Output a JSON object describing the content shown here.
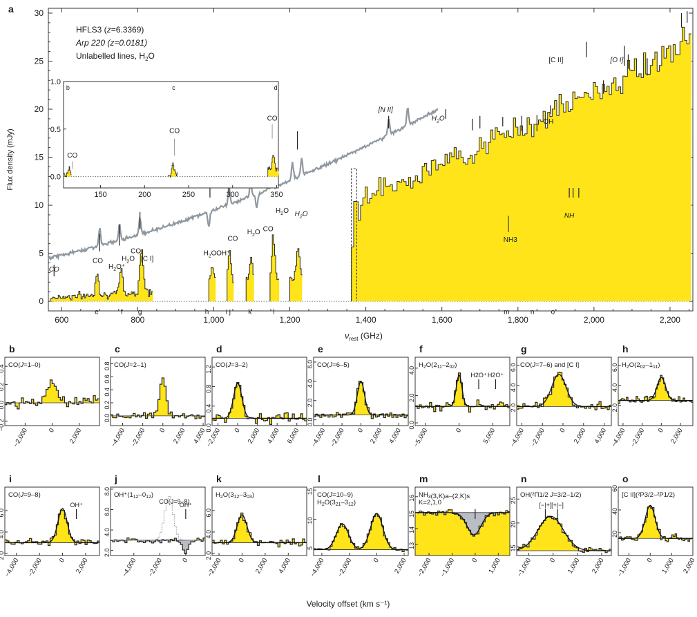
{
  "colors": {
    "fill": "#ffe419",
    "stroke": "#2b2b2b",
    "arp": "#8f979f",
    "absorb": "#b9bec4"
  },
  "panel_letters": {
    "a": "a",
    "b": "b",
    "c": "c",
    "d": "d",
    "e": "e",
    "f": "f",
    "g": "g",
    "h": "h",
    "i": "i",
    "j": "j",
    "k": "k",
    "l": "l",
    "m": "m",
    "n": "n",
    "o": "o"
  },
  "shared_xlabel": "Velocity offset (km s⁻¹)",
  "chart_data": [
    {
      "id": "a",
      "type": "area",
      "xlabel": "νrest (GHz)",
      "ylabel": "Flux density (mJy)",
      "xlim": [
        565,
        2260
      ],
      "ylim": [
        -1,
        30.5
      ],
      "xticks": [
        600,
        800,
        1000,
        1200,
        1400,
        1600,
        1800,
        2000,
        2200
      ],
      "xtick_labels": [
        "600",
        "800",
        "1,000",
        "1,200",
        "1,400",
        "1,600",
        "1,800",
        "2,000",
        "2,200"
      ],
      "yticks": [
        0,
        5,
        10,
        15,
        20,
        25,
        30
      ],
      "legend": [
        {
          "text": "HFLS3 (z=6.3369)",
          "color": "#2b2b2b",
          "italic": false
        },
        {
          "text": "Arp 220 (z=0.0181)",
          "color": "#8f979f",
          "italic": true
        },
        {
          "text": "Unlabelled lines, H2O",
          "color": "#1a1a1a",
          "italic": false
        }
      ],
      "series": [
        {
          "name": "HFLS3 (z=6.3369)",
          "segments": [
            [
              570,
              840
            ],
            [
              987,
              1005
            ],
            [
              1035,
              1052
            ],
            [
              1085,
              1106
            ],
            [
              1148,
              1172
            ],
            [
              1200,
              1232
            ],
            [
              1362,
              2255
            ]
          ]
        },
        {
          "name": "Arp 220 (z=0.0181)",
          "x_range": [
            565,
            1590
          ],
          "y_range": [
            4.5,
            20.2
          ]
        }
      ],
      "line_labels": [
        {
          "text": "CO",
          "x": 580,
          "y": 3.1,
          "italic": true
        },
        {
          "text": "CO",
          "x": 695,
          "y": 4.0
        },
        {
          "text": "H2O⁺",
          "x": 745,
          "y": 3.4
        },
        {
          "text": "H2O",
          "x": 775,
          "y": 4.2
        },
        {
          "text": "CO",
          "x": 795,
          "y": 5.0
        },
        {
          "text": "[C I]",
          "x": 825,
          "y": 4.2
        },
        {
          "text": "H2O",
          "x": 990,
          "y": 4.8
        },
        {
          "text": "OH⁺",
          "x": 1025,
          "y": 4.8
        },
        {
          "text": "CO",
          "x": 1050,
          "y": 6.3
        },
        {
          "text": "H2O",
          "x": 1105,
          "y": 7.0
        },
        {
          "text": "CO",
          "x": 1143,
          "y": 7.3
        },
        {
          "text": "H2O",
          "x": 1180,
          "y": 9.2
        },
        {
          "text": "H2O",
          "x": 1230,
          "y": 8.9,
          "italic": true
        },
        {
          "text": "[N II]",
          "x": 1452,
          "y": 19.7,
          "italic": true
        },
        {
          "text": "H2O",
          "x": 1590,
          "y": 18.8,
          "italic": true
        },
        {
          "text": "NH3",
          "x": 1780,
          "y": 6.2
        },
        {
          "text": "NH",
          "x": 1935,
          "y": 8.7,
          "italic": true
        },
        {
          "text": "OH",
          "x": 1880,
          "y": 18.5
        },
        {
          "text": "[C II]",
          "x": 1900,
          "y": 24.9
        },
        {
          "text": "[O I]",
          "x": 2060,
          "y": 24.9,
          "italic": true
        }
      ],
      "letters": [
        {
          "text": "e",
          "x": 692
        },
        {
          "text": "f",
          "x": 758
        },
        {
          "text": "g",
          "x": 806
        },
        {
          "text": "h",
          "x": 982
        },
        {
          "text": "i j",
          "x": 1038
        },
        {
          "text": "k",
          "x": 1095
        },
        {
          "text": "l",
          "x": 1158
        },
        {
          "text": "m",
          "x": 1770
        },
        {
          "text": "n",
          "x": 1838
        },
        {
          "text": "o",
          "x": 1892
        }
      ]
    },
    {
      "id": "a-inset",
      "type": "line",
      "xlim": [
        108,
        352
      ],
      "ylim": [
        -0.12,
        1.0
      ],
      "xticks": [
        150,
        200,
        250,
        300,
        350
      ],
      "yticks": [
        0.0,
        0.5,
        1.0
      ],
      "ytick_labels": [
        "0.0",
        "0.5",
        "1.0"
      ],
      "line_labels": [
        {
          "text": "CO",
          "x": 118,
          "y": 0.2
        },
        {
          "text": "CO",
          "x": 234,
          "y": 0.46
        },
        {
          "text": "CO",
          "x": 345,
          "y": 0.59
        }
      ],
      "letters": [
        {
          "text": "b",
          "x": 113
        },
        {
          "text": "c",
          "x": 233
        },
        {
          "text": "d",
          "x": 349
        }
      ],
      "segments": [
        [
          108,
          117
        ],
        [
          227,
          237
        ],
        [
          340,
          352
        ]
      ]
    },
    {
      "id": "b",
      "type": "bar",
      "title": "CO(J=1–0)",
      "xlim": [
        -3500,
        3500
      ],
      "ylim": [
        -0.25,
        0.5
      ],
      "xticks": [
        -2000,
        0,
        2000
      ],
      "xtick_labels": [
        "−2,000",
        "0",
        "2,000"
      ],
      "yticks": [
        -0.2,
        0.0,
        0.2,
        0.4
      ],
      "ytick_labels": [
        "−0.2",
        "0.0",
        "0.2",
        "0.4"
      ],
      "baseline": 0,
      "peak": {
        "center": 0,
        "width": 350,
        "amp": 0.22
      },
      "noise": 0.09
    },
    {
      "id": "c",
      "type": "bar",
      "title": "CO(J=2–1)",
      "xlim": [
        -5200,
        4200
      ],
      "ylim": [
        -0.15,
        0.9
      ],
      "xticks": [
        -4000,
        -2000,
        0,
        2000,
        4000
      ],
      "xtick_labels": [
        "−4,000",
        "−2,000",
        "0",
        "2,000",
        "4,000"
      ],
      "yticks": [
        0.0,
        0.2,
        0.4,
        0.6,
        0.8
      ],
      "ytick_labels": [
        "0.0",
        "0.2",
        "0.4",
        "0.6",
        "0.8"
      ],
      "baseline": 0,
      "peak": {
        "center": 0,
        "width": 320,
        "amp": 0.58
      },
      "noise": 0.08
    },
    {
      "id": "d",
      "type": "bar",
      "title": "CO(J=3–2)",
      "xlim": [
        -2600,
        7000
      ],
      "ylim": [
        0,
        1.4
      ],
      "xticks": [
        -2000,
        0,
        2000,
        4000,
        6000
      ],
      "xtick_labels": [
        "−2,000",
        "0",
        "2,000",
        "4,000",
        "6,000"
      ],
      "yticks": [
        0.0,
        0.4,
        0.8,
        1.2
      ],
      "ytick_labels": [
        "0.0",
        "0.4",
        "0.8",
        "1.2"
      ],
      "baseline": 0.15,
      "peak": {
        "center": 0,
        "width": 420,
        "amp": 0.72
      },
      "noise": 0.14,
      "fit": true
    },
    {
      "id": "e",
      "type": "bar",
      "title": "CO(J=6–5)",
      "xlim": [
        -5000,
        5000
      ],
      "ylim": [
        -0.6,
        6.5
      ],
      "xticks": [
        -4000,
        -2000,
        0,
        2000,
        4000
      ],
      "xtick_labels": [
        "−4,000",
        "−2,000",
        "0",
        "2,000",
        "4,000"
      ],
      "yticks": [
        0.0,
        2.0,
        4.0,
        6.0
      ],
      "ytick_labels": [
        "0.0",
        "2.0",
        "4.0",
        "6.0"
      ],
      "baseline": 0.5,
      "peak": {
        "center": 0,
        "width": 380,
        "amp": 3.5
      },
      "noise": 0.55,
      "fit": true
    },
    {
      "id": "f",
      "type": "bar",
      "title": "H2O(211–202)",
      "xlim": [
        -6500,
        7500
      ],
      "ylim": [
        -0.2,
        4.8
      ],
      "xticks": [
        -5000,
        0,
        5000
      ],
      "xtick_labels": [
        "−5,000",
        "0",
        "5,000"
      ],
      "yticks": [
        0.0,
        2.0,
        4.0
      ],
      "ytick_labels": [
        "0.0",
        "2.0",
        "4.0"
      ],
      "baseline": 1.2,
      "peak": {
        "center": 0,
        "width": 420,
        "amp": 2.3
      },
      "noise": 0.5,
      "fit": true,
      "marks": [
        {
          "text": "H2O⁺",
          "x": 2900
        },
        {
          "text": "H2O⁺",
          "x": 5400
        }
      ]
    },
    {
      "id": "g",
      "type": "bar",
      "title": "CO(J=7–6) and [C I]",
      "xlim": [
        -4500,
        4700
      ],
      "ylim": [
        0,
        6.8
      ],
      "xticks": [
        -4000,
        -2000,
        0,
        2000,
        4000
      ],
      "xtick_labels": [
        "−4,000",
        "−2,000",
        "0",
        "2,000",
        "4,000"
      ],
      "yticks": [
        2.0,
        4.0,
        6.0
      ],
      "ytick_labels": [
        "2.0",
        "4.0",
        "6.0"
      ],
      "baseline": 1.9,
      "peak": {
        "center": -400,
        "width": 700,
        "amp": 3.2
      },
      "noise": 0.6,
      "fit": true
    },
    {
      "id": "h",
      "type": "bar",
      "title": "H2O(202–111)",
      "xlim": [
        -4500,
        3300
      ],
      "ylim": [
        0,
        6.8
      ],
      "xticks": [
        -4000,
        -2000,
        0,
        2000
      ],
      "xtick_labels": [
        "−4,000",
        "−2,000",
        "0",
        "2,000"
      ],
      "yticks": [
        2.0,
        4.0,
        6.0
      ],
      "ytick_labels": [
        "2.0",
        "4.0",
        "6.0"
      ],
      "baseline": 2.5,
      "peak": {
        "center": 0,
        "width": 450,
        "amp": 2.3
      },
      "noise": 0.55,
      "fit": true
    },
    {
      "id": "i",
      "type": "bar",
      "title": "CO(J=9–8)",
      "xlim": [
        -5000,
        3200
      ],
      "ylim": [
        1.8,
        8.2
      ],
      "xticks": [
        -4000,
        -2000,
        0,
        2000
      ],
      "xtick_labels": [
        "−4,000",
        "−2,000",
        "0",
        "2,000"
      ],
      "yticks": [
        2.0,
        4.0,
        6.0
      ],
      "ytick_labels": [
        "2.0",
        "4.0",
        "6.0"
      ],
      "baseline": 3.0,
      "peak": {
        "center": 0,
        "width": 400,
        "amp": 3.2
      },
      "noise": 0.55,
      "fit": true,
      "marks": [
        {
          "text": "OH⁺",
          "x": 1200
        }
      ]
    },
    {
      "id": "j",
      "type": "bar",
      "title": "OH⁺(112–012)",
      "xlim": [
        -5800,
        1500
      ],
      "ylim": [
        1.5,
        8.2
      ],
      "xticks": [
        -4000,
        -2000,
        0
      ],
      "xtick_labels": [
        "−4,000",
        "−2,000",
        "0"
      ],
      "yticks": [
        2.0,
        4.0,
        6.0,
        8.0
      ],
      "ytick_labels": [
        "2.0",
        "4.0",
        "6.0",
        "8.0"
      ],
      "baseline": 3.0,
      "absorption": {
        "center": 0,
        "width": 220,
        "amp": -1.2
      },
      "noise": 0.35,
      "ghost": {
        "name": "CO(J=9–8)",
        "center": -1300,
        "width": 330,
        "amp": 4.3
      },
      "marks": [
        {
          "text": "OH⁺",
          "x": 0
        }
      ]
    },
    {
      "id": "k",
      "type": "bar",
      "title": "H2O(312–303)",
      "xlim": [
        -2600,
        5600
      ],
      "ylim": [
        1.8,
        8.2
      ],
      "xticks": [
        -2000,
        0,
        2000,
        4000
      ],
      "xtick_labels": [
        "−2,000",
        "0",
        "2,000",
        "4,000"
      ],
      "yticks": [
        2.0,
        4.0,
        6.0
      ],
      "ytick_labels": [
        "2.0",
        "4.0",
        "6.0"
      ],
      "baseline": 3.0,
      "peak": {
        "center": 0,
        "width": 420,
        "amp": 2.6
      },
      "noise": 0.55,
      "fit": true
    },
    {
      "id": "l",
      "type": "bar",
      "title": "CO(J=10–9) / H2O(321–312)",
      "title_lines": [
        "CO(J=10–9)",
        "H2O(321–312)"
      ],
      "xlim": [
        -4600,
        2300
      ],
      "ylim": [
        3.8,
        15.5
      ],
      "xticks": [
        -4000,
        -2000,
        0,
        2000
      ],
      "xtick_labels": [
        "−4,000",
        "−2,000",
        "0",
        "2,000"
      ],
      "yticks": [
        5,
        10,
        15
      ],
      "ytick_labels": [
        "5",
        "10",
        "15"
      ],
      "baseline": 4.8,
      "peaks": [
        {
          "center": -2500,
          "width": 450,
          "amp": 4.4
        },
        {
          "center": 0,
          "width": 450,
          "amp": 6.2
        }
      ],
      "noise": 0.6,
      "fit": true
    },
    {
      "id": "m",
      "type": "bar",
      "title": "NH3(3,K)a–(2,K)s / K=2,1,0",
      "title_lines": [
        "NH3(3,K)a–(2,K)s",
        "K=2,1,0"
      ],
      "xlim": [
        -2600,
        1500
      ],
      "ylim": [
        12.3,
        16.6
      ],
      "xticks": [
        -2000,
        -1000,
        0,
        1000
      ],
      "xtick_labels": [
        "−2,000",
        "−1,000",
        "0",
        "1,000"
      ],
      "yticks": [
        13,
        14,
        15,
        16
      ],
      "ytick_labels": [
        "13",
        "14",
        "15",
        "16"
      ],
      "baseline": 15.0,
      "absorption": {
        "center": -50,
        "width": 300,
        "amp": -1.4
      },
      "noise": 0.3,
      "fit": true,
      "marks": [
        {
          "text": "",
          "x": 0
        }
      ]
    },
    {
      "id": "n",
      "type": "bar",
      "title": "OH(²Π1/2 J=3/2–1/2)",
      "xlim": [
        -1500,
        2400
      ],
      "ylim": [
        13.2,
        27.5
      ],
      "xticks": [
        -1000,
        0,
        1000,
        2000
      ],
      "xtick_labels": [
        "−1,000",
        "0",
        "1,000",
        "2,000"
      ],
      "yticks": [
        15,
        20,
        25
      ],
      "ytick_labels": [
        "15",
        "20",
        "25"
      ],
      "baseline": 14.2,
      "peak": {
        "center": -100,
        "width": 520,
        "amp": 7.2
      },
      "noise": 1.4,
      "fit": true,
      "marks": [
        {
          "text": "[−|+]",
          "x": -320
        },
        {
          "text": "[+|−]",
          "x": 180
        }
      ]
    },
    {
      "id": "o",
      "type": "bar",
      "title": "[C II](²P3/2–²P1/2)",
      "xlim": [
        -1500,
        2000
      ],
      "ylim": [
        0,
        60
      ],
      "xticks": [
        -1000,
        0,
        1000,
        2000
      ],
      "xtick_labels": [
        "−1,000",
        "0",
        "1,000",
        "2,000"
      ],
      "yticks": [
        20,
        40,
        60
      ],
      "ytick_labels": [
        "20",
        "40",
        "60"
      ],
      "baseline": 15,
      "peak": {
        "center": 0,
        "width": 230,
        "amp": 29
      },
      "noise": 5,
      "fit": true
    }
  ]
}
